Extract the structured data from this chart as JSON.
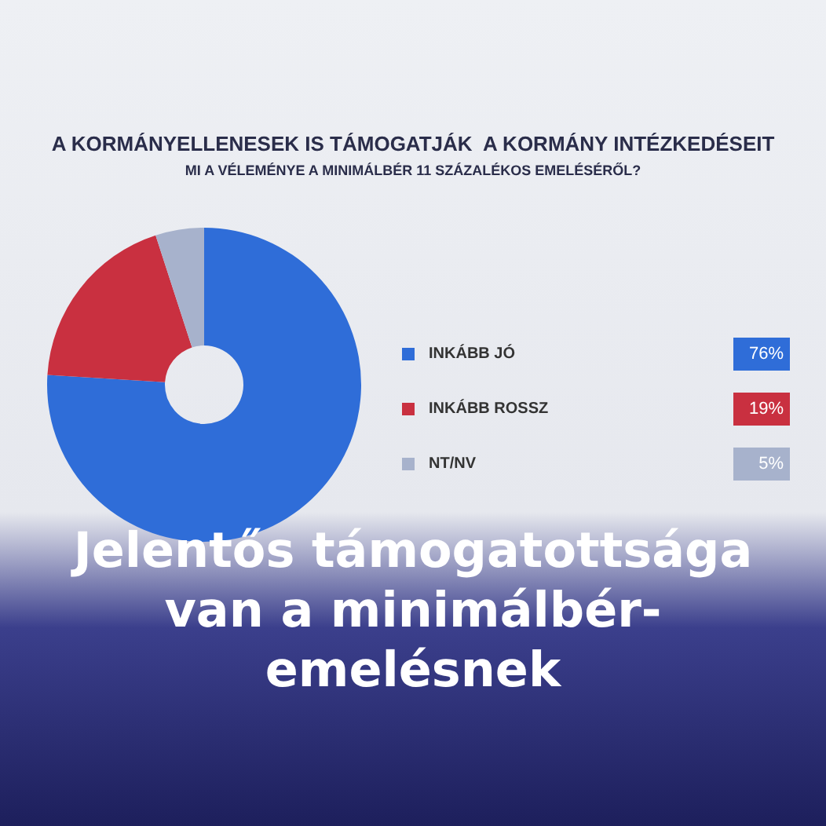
{
  "chart_data": {
    "type": "donut",
    "title": "A KORMÁNYELLENESEK IS TÁMOGATJÁK  A KORMÁNY INTÉZKEDÉSEIT",
    "subtitle": "MI A VÉLEMÉNYE A MINIMÁLBÉR 11 SZÁZALÉKOS EMELÉSÉRŐL?",
    "categories": [
      "INKÁBB JÓ",
      "INKÁBB ROSSZ",
      "NT/NV"
    ],
    "values": [
      76,
      19,
      5
    ],
    "colors": [
      "#2f6dd8",
      "#c93040",
      "#a7b2cc"
    ],
    "value_labels": [
      "76%",
      "19%",
      "5%"
    ],
    "legend": "right",
    "annotations": [
      "Jelentős támogatottsága van a minimálbér-emelésnek"
    ]
  }
}
